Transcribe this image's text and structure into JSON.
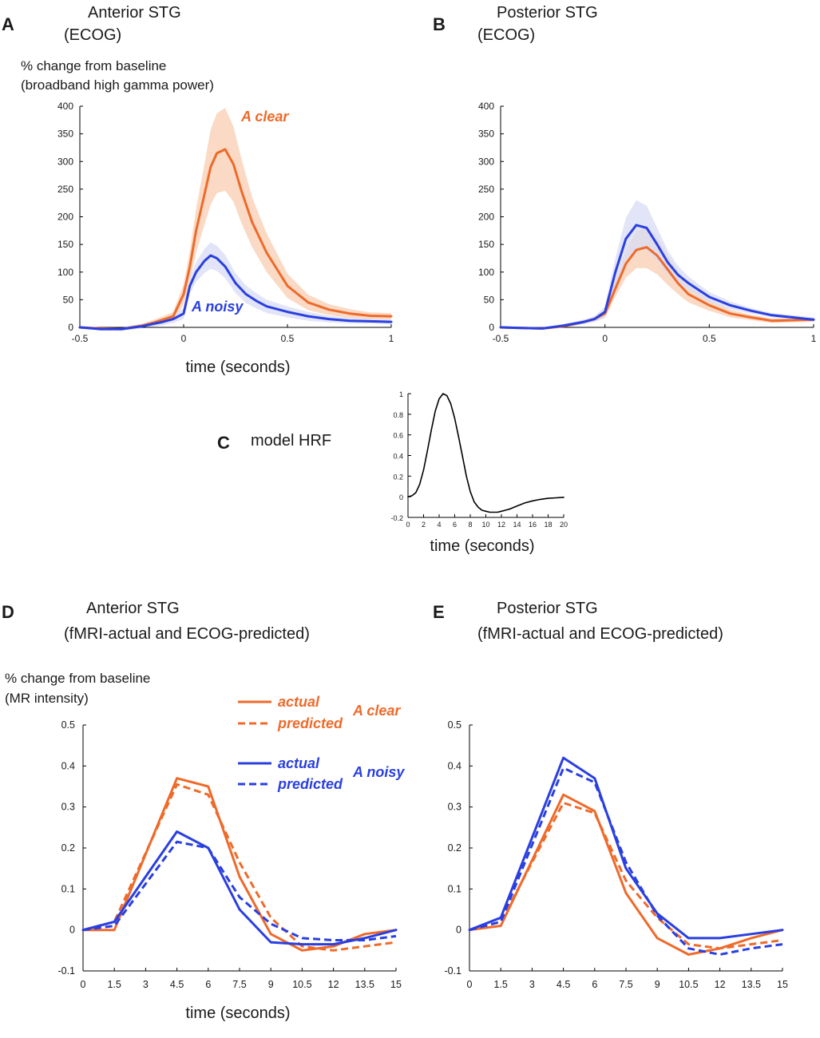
{
  "panels": {
    "A": {
      "letter": "A",
      "title1": "Anterior STG",
      "title2": "(ECOG)",
      "ylabel1": "% change from baseline",
      "ylabel2": "(broadband high gamma power)",
      "xlabel": "time (seconds)"
    },
    "B": {
      "letter": "B",
      "title1": "Posterior STG",
      "title2": "(ECOG)"
    },
    "C": {
      "letter": "C",
      "title": "model HRF",
      "xlabel": "time (seconds)"
    },
    "D": {
      "letter": "D",
      "title1": "Anterior STG",
      "title2": "(fMRI-actual and ECOG-predicted)",
      "ylabel1": "% change from baseline",
      "ylabel2": "(MR intensity)",
      "xlabel": "time (seconds)"
    },
    "E": {
      "letter": "E",
      "title1": "Posterior STG",
      "title2": "(fMRI-actual and ECOG-predicted)"
    }
  },
  "legend": {
    "actual": "actual",
    "predicted": "predicted",
    "clear": "A clear",
    "noisy": "A noisy"
  },
  "colors": {
    "clear": "#ee6a2a",
    "noisy": "#2a3fe0",
    "clear_band": "#f8cdb1",
    "noisy_band": "#d8dcf6"
  },
  "chart_data": [
    {
      "id": "A",
      "type": "line",
      "title": "Anterior STG (ECOG)",
      "xlabel": "time (seconds)",
      "ylabel": "% change from baseline (broadband high gamma power)",
      "xlim": [
        -0.5,
        1
      ],
      "ylim": [
        0,
        400
      ],
      "xticks": [
        -0.5,
        0,
        0.5,
        1
      ],
      "xtick_labels": [
        "-0.5",
        "0",
        "0.5",
        "1"
      ],
      "yticks": [
        0,
        50,
        100,
        150,
        200,
        250,
        300,
        350,
        400
      ],
      "ytick_labels": [
        "0",
        "50",
        "100",
        "150",
        "200",
        "250",
        "300",
        "350",
        "400"
      ],
      "annotations": [
        "A clear",
        "A noisy"
      ],
      "series": [
        {
          "name": "A clear",
          "x": [
            -0.5,
            -0.4,
            -0.3,
            -0.2,
            -0.15,
            -0.1,
            -0.05,
            0,
            0.03,
            0.06,
            0.1,
            0.13,
            0.16,
            0.2,
            0.24,
            0.28,
            0.33,
            0.4,
            0.5,
            0.6,
            0.7,
            0.8,
            0.9,
            1.0
          ],
          "y": [
            0,
            -2,
            -3,
            3,
            8,
            14,
            20,
            60,
            110,
            175,
            240,
            290,
            315,
            322,
            295,
            245,
            190,
            135,
            75,
            45,
            32,
            25,
            21,
            20
          ],
          "band": [
            0,
            3,
            3,
            4,
            5,
            6,
            8,
            18,
            28,
            40,
            55,
            68,
            72,
            75,
            68,
            58,
            45,
            35,
            22,
            14,
            10,
            8,
            6,
            6
          ]
        },
        {
          "name": "A noisy",
          "x": [
            -0.5,
            -0.4,
            -0.3,
            -0.2,
            -0.15,
            -0.1,
            -0.05,
            0,
            0.03,
            0.06,
            0.1,
            0.13,
            0.16,
            0.2,
            0.25,
            0.3,
            0.35,
            0.4,
            0.5,
            0.6,
            0.7,
            0.8,
            0.9,
            1.0
          ],
          "y": [
            0,
            -3,
            -3,
            2,
            6,
            10,
            15,
            25,
            75,
            100,
            120,
            130,
            125,
            110,
            80,
            60,
            48,
            38,
            28,
            20,
            15,
            12,
            11,
            10
          ],
          "band": [
            0,
            3,
            3,
            4,
            5,
            6,
            7,
            10,
            14,
            18,
            22,
            24,
            23,
            21,
            18,
            16,
            14,
            12,
            10,
            8,
            6,
            5,
            4,
            4
          ]
        }
      ]
    },
    {
      "id": "B",
      "type": "line",
      "title": "Posterior STG (ECOG)",
      "xlim": [
        -0.5,
        1
      ],
      "ylim": [
        0,
        400
      ],
      "xticks": [
        -0.5,
        0,
        0.5,
        1
      ],
      "xtick_labels": [
        "-0.5",
        "0",
        "0.5",
        "1"
      ],
      "yticks": [
        0,
        50,
        100,
        150,
        200,
        250,
        300,
        350,
        400
      ],
      "ytick_labels": [
        "0",
        "50",
        "100",
        "150",
        "200",
        "250",
        "300",
        "350",
        "400"
      ],
      "series": [
        {
          "name": "A clear",
          "x": [
            -0.5,
            -0.4,
            -0.3,
            -0.2,
            -0.1,
            -0.05,
            0,
            0.05,
            0.1,
            0.15,
            0.2,
            0.25,
            0.3,
            0.35,
            0.4,
            0.5,
            0.6,
            0.7,
            0.8,
            0.9,
            1.0
          ],
          "y": [
            0,
            -1,
            -2,
            2,
            10,
            15,
            25,
            70,
            115,
            140,
            145,
            130,
            105,
            80,
            60,
            40,
            25,
            18,
            12,
            13,
            14
          ],
          "band": [
            0,
            2,
            2,
            3,
            4,
            5,
            8,
            15,
            25,
            33,
            38,
            34,
            28,
            20,
            15,
            10,
            7,
            5,
            4,
            4,
            4
          ]
        },
        {
          "name": "A noisy",
          "x": [
            -0.5,
            -0.4,
            -0.3,
            -0.2,
            -0.1,
            -0.05,
            0,
            0.05,
            0.1,
            0.15,
            0.2,
            0.25,
            0.3,
            0.35,
            0.4,
            0.5,
            0.6,
            0.7,
            0.8,
            0.9,
            1.0
          ],
          "y": [
            0,
            -1,
            -2,
            3,
            10,
            15,
            28,
            100,
            160,
            185,
            180,
            150,
            118,
            95,
            80,
            55,
            40,
            30,
            22,
            18,
            14
          ],
          "band": [
            0,
            2,
            2,
            3,
            4,
            5,
            10,
            25,
            38,
            45,
            40,
            30,
            22,
            16,
            12,
            9,
            7,
            5,
            4,
            4,
            4
          ]
        }
      ]
    },
    {
      "id": "C",
      "type": "line",
      "title": "model HRF",
      "xlabel": "time (seconds)",
      "xlim": [
        0,
        20
      ],
      "ylim": [
        -0.2,
        1
      ],
      "xticks": [
        0,
        2,
        4,
        6,
        8,
        10,
        12,
        14,
        16,
        18,
        20
      ],
      "xtick_labels": [
        "0",
        "2",
        "4",
        "6",
        "8",
        "10",
        "12",
        "14",
        "16",
        "18",
        "20"
      ],
      "yticks": [
        -0.2,
        0,
        0.2,
        0.4,
        0.6,
        0.8,
        1
      ],
      "ytick_labels": [
        "-0.2",
        "0",
        "0.2",
        "0.4",
        "0.6",
        "0.8",
        "1"
      ],
      "series": [
        {
          "name": "HRF",
          "x": [
            0,
            0.5,
            1,
            1.5,
            2,
            2.5,
            3,
            3.5,
            4,
            4.5,
            5,
            5.5,
            6,
            6.5,
            7,
            7.5,
            8,
            8.5,
            9,
            9.5,
            10,
            10.5,
            11,
            11.5,
            12,
            12.5,
            13,
            14,
            15,
            16,
            17,
            18,
            19,
            20
          ],
          "y": [
            0,
            0.01,
            0.04,
            0.12,
            0.26,
            0.45,
            0.65,
            0.83,
            0.95,
            1.0,
            0.98,
            0.9,
            0.76,
            0.58,
            0.39,
            0.2,
            0.05,
            -0.05,
            -0.1,
            -0.13,
            -0.14,
            -0.15,
            -0.15,
            -0.15,
            -0.14,
            -0.13,
            -0.12,
            -0.09,
            -0.06,
            -0.04,
            -0.025,
            -0.015,
            -0.01,
            -0.005
          ]
        }
      ]
    },
    {
      "id": "D",
      "type": "line",
      "title": "Anterior STG (fMRI-actual and ECOG-predicted)",
      "xlabel": "time (seconds)",
      "ylabel": "% change from baseline (MR intensity)",
      "xlim": [
        0,
        15
      ],
      "ylim": [
        -0.1,
        0.5
      ],
      "xticks": [
        0,
        1.5,
        3,
        4.5,
        6,
        7.5,
        9,
        10.5,
        12,
        13.5,
        15
      ],
      "xtick_labels": [
        "0",
        "1.5",
        "3",
        "4.5",
        "6",
        "7.5",
        "9",
        "10.5",
        "12",
        "13.5",
        "15"
      ],
      "yticks": [
        -0.1,
        0,
        0.1,
        0.2,
        0.3,
        0.4,
        0.5
      ],
      "ytick_labels": [
        "-0.1",
        "0",
        "0.1",
        "0.2",
        "0.3",
        "0.4",
        "0.5"
      ],
      "series": [
        {
          "name": "A clear actual",
          "dashed": false,
          "x": [
            0,
            1.5,
            4.5,
            6,
            7.5,
            9,
            10.5,
            12,
            13.5,
            15
          ],
          "y": [
            0,
            0,
            0.37,
            0.35,
            0.13,
            -0.01,
            -0.05,
            -0.04,
            -0.01,
            0
          ]
        },
        {
          "name": "A clear predicted",
          "dashed": true,
          "x": [
            0,
            1.5,
            4.5,
            6,
            7.5,
            9,
            10.5,
            12,
            13.5,
            15
          ],
          "y": [
            0,
            0.02,
            0.355,
            0.33,
            0.165,
            0.03,
            -0.04,
            -0.05,
            -0.04,
            -0.03
          ]
        },
        {
          "name": "A noisy actual",
          "dashed": false,
          "x": [
            0,
            1.5,
            4.5,
            6,
            7.5,
            9,
            10.5,
            12,
            13.5,
            15
          ],
          "y": [
            0,
            0.02,
            0.24,
            0.2,
            0.05,
            -0.03,
            -0.035,
            -0.035,
            -0.02,
            0
          ]
        },
        {
          "name": "A noisy predicted",
          "dashed": true,
          "x": [
            0,
            1.5,
            4.5,
            6,
            7.5,
            9,
            10.5,
            12,
            13.5,
            15
          ],
          "y": [
            0,
            0.01,
            0.215,
            0.2,
            0.08,
            0.015,
            -0.02,
            -0.025,
            -0.025,
            -0.015
          ]
        }
      ]
    },
    {
      "id": "E",
      "type": "line",
      "title": "Posterior STG (fMRI-actual and ECOG-predicted)",
      "xlim": [
        0,
        15
      ],
      "ylim": [
        -0.1,
        0.5
      ],
      "xticks": [
        0,
        1.5,
        3,
        4.5,
        6,
        7.5,
        9,
        10.5,
        12,
        13.5,
        15
      ],
      "xtick_labels": [
        "0",
        "1.5",
        "3",
        "4.5",
        "6",
        "7.5",
        "9",
        "10.5",
        "12",
        "13.5",
        "15"
      ],
      "yticks": [
        -0.1,
        0,
        0.1,
        0.2,
        0.3,
        0.4,
        0.5
      ],
      "ytick_labels": [
        "-0.1",
        "0",
        "0.1",
        "0.2",
        "0.3",
        "0.4",
        "0.5"
      ],
      "series": [
        {
          "name": "A clear actual",
          "dashed": false,
          "x": [
            0,
            1.5,
            4.5,
            6,
            7.5,
            9,
            10.5,
            12,
            13.5,
            15
          ],
          "y": [
            0,
            0.01,
            0.33,
            0.29,
            0.09,
            -0.02,
            -0.06,
            -0.045,
            -0.02,
            0
          ]
        },
        {
          "name": "A clear predicted",
          "dashed": true,
          "x": [
            0,
            1.5,
            4.5,
            6,
            7.5,
            9,
            10.5,
            12,
            13.5,
            15
          ],
          "y": [
            0,
            0.02,
            0.31,
            0.285,
            0.12,
            0.03,
            -0.035,
            -0.045,
            -0.035,
            -0.025
          ]
        },
        {
          "name": "A noisy actual",
          "dashed": false,
          "x": [
            0,
            1.5,
            4.5,
            6,
            7.5,
            9,
            10.5,
            12,
            13.5,
            15
          ],
          "y": [
            0,
            0.03,
            0.42,
            0.37,
            0.15,
            0.04,
            -0.02,
            -0.02,
            -0.01,
            0
          ]
        },
        {
          "name": "A noisy predicted",
          "dashed": true,
          "x": [
            0,
            1.5,
            4.5,
            6,
            7.5,
            9,
            10.5,
            12,
            13.5,
            15
          ],
          "y": [
            0,
            0.02,
            0.395,
            0.36,
            0.165,
            0.035,
            -0.045,
            -0.06,
            -0.045,
            -0.035
          ]
        }
      ]
    }
  ]
}
